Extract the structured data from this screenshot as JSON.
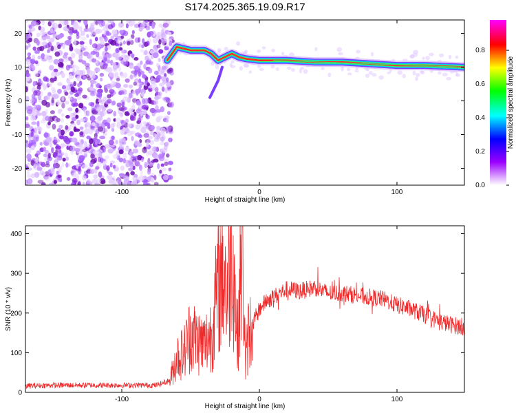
{
  "title": "S174.2025.365.19.09.R17",
  "chart_data": [
    {
      "type": "heatmap",
      "title": "S174.2025.365.19.09.R17",
      "xlabel": "Height of straight line (km)",
      "ylabel": "Frequency (Hz)",
      "xlim": [
        -170,
        149
      ],
      "ylim": [
        -25,
        24
      ],
      "xticks": [
        -100,
        0,
        100
      ],
      "yticks": [
        -20,
        -10,
        0,
        10,
        20
      ],
      "noise_region_x": [
        -170,
        -63
      ],
      "ridge": {
        "x": [
          -67,
          -60,
          -50,
          -40,
          -35,
          -30,
          -25,
          -20,
          -15,
          -10,
          0,
          10,
          20,
          40,
          60,
          80,
          100,
          120,
          149
        ],
        "freq": [
          12,
          16,
          15,
          15,
          14,
          12,
          13,
          14,
          13,
          12.5,
          12,
          12,
          12,
          11.5,
          11.5,
          11,
          10.5,
          10.5,
          10
        ]
      },
      "spur": {
        "x": [
          -36,
          -30,
          -27
        ],
        "freq": [
          1,
          6,
          10
        ]
      },
      "colorbar": {
        "label": "Normalized spectral amplitude",
        "range": [
          0,
          0.98
        ],
        "ticks": [
          "0.0",
          "0.2",
          "0.4",
          "0.6",
          "0.8"
        ],
        "colors": [
          "#ffffff",
          "#9b00ff",
          "#0000ff",
          "#00ffff",
          "#00ff00",
          "#ffff00",
          "#ff0000",
          "#ff00ff"
        ]
      }
    },
    {
      "type": "line",
      "xlabel": "Height of straight line (km)",
      "ylabel": "SNR (10 * v/v)",
      "xlim": [
        -170,
        149
      ],
      "ylim": [
        0,
        420
      ],
      "xticks": [
        -100,
        0,
        100
      ],
      "yticks": [
        0,
        100,
        200,
        300,
        400
      ],
      "color": "#ef2b2b",
      "series": [
        {
          "name": "SNR",
          "x": [
            -170,
            -150,
            -130,
            -110,
            -90,
            -75,
            -65,
            -60,
            -55,
            -50,
            -45,
            -40,
            -35,
            -30,
            -26,
            -23,
            -20,
            -18,
            -16,
            -14,
            -12,
            -10,
            -8,
            -5,
            0,
            5,
            10,
            20,
            30,
            40,
            50,
            60,
            70,
            80,
            90,
            100,
            110,
            120,
            130,
            140,
            149
          ],
          "values": [
            16,
            18,
            18,
            18,
            18,
            18,
            30,
            90,
            100,
            150,
            130,
            120,
            150,
            260,
            320,
            240,
            400,
            280,
            120,
            280,
            340,
            60,
            150,
            170,
            210,
            230,
            240,
            260,
            255,
            265,
            250,
            250,
            245,
            240,
            235,
            220,
            210,
            195,
            180,
            170,
            165
          ]
        }
      ]
    }
  ]
}
